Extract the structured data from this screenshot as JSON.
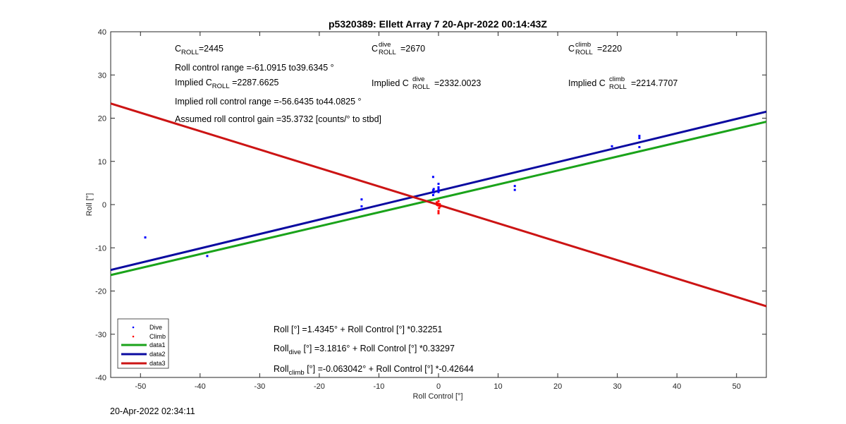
{
  "chart_data": {
    "type": "scatter",
    "title": "p5320389: Ellett Array 7 20-Apr-2022 00:14:43Z",
    "xlabel": "Roll Control [°]",
    "ylabel": "Roll [°]",
    "xlim": [
      -55,
      55
    ],
    "ylim": [
      -40,
      40
    ],
    "xticks": [
      -50,
      -40,
      -30,
      -20,
      -10,
      0,
      10,
      20,
      30,
      40,
      50
    ],
    "yticks": [
      -40,
      -30,
      -20,
      -10,
      0,
      10,
      20,
      30,
      40
    ],
    "xtick_labels": [
      "-50",
      "-40",
      "-30",
      "-20",
      "-10",
      "0",
      "10",
      "20",
      "30",
      "40",
      "50"
    ],
    "ytick_labels": [
      "-40",
      "-30",
      "-20",
      "-10",
      "0",
      "10",
      "20",
      "30",
      "40"
    ],
    "grid": false,
    "legend_position": "bottom-left",
    "series": [
      {
        "name": "Dive",
        "kind": "points",
        "color": "#0000ff",
        "points": [
          [
            -49.2,
            -7.6
          ],
          [
            -38.8,
            -11.9
          ],
          [
            -12.9,
            1.2
          ],
          [
            -12.9,
            -0.4
          ],
          [
            -12.9,
            -1.1
          ],
          [
            -0.9,
            6.4
          ],
          [
            -0.9,
            2.2
          ],
          [
            -0.9,
            3.3
          ],
          [
            -0.8,
            3.6
          ],
          [
            -0.8,
            2.8
          ],
          [
            0.0,
            4.8
          ],
          [
            0.0,
            3.7
          ],
          [
            0.0,
            2.9
          ],
          [
            0.0,
            3.4
          ],
          [
            0.0,
            4.0
          ],
          [
            12.8,
            4.3
          ],
          [
            12.8,
            3.4
          ],
          [
            29.1,
            13.5
          ],
          [
            33.7,
            15.4
          ],
          [
            33.7,
            15.9
          ],
          [
            33.7,
            13.3
          ]
        ]
      },
      {
        "name": "Climb",
        "kind": "points",
        "color": "#ff0000",
        "points": [
          [
            -0.3,
            0.5
          ],
          [
            -0.1,
            0.2
          ],
          [
            0.0,
            -0.2
          ],
          [
            0.1,
            -0.8
          ],
          [
            0.0,
            -1.5
          ],
          [
            -0.2,
            -0.1
          ],
          [
            0.2,
            0.1
          ],
          [
            0.0,
            0.8
          ],
          [
            0.0,
            -2.0
          ],
          [
            0.3,
            -0.4
          ]
        ]
      },
      {
        "name": "data1",
        "kind": "line",
        "color": "#1aa31a",
        "intercept": 1.4345,
        "slope": 0.32251
      },
      {
        "name": "data2",
        "kind": "line",
        "color": "#0a0aa0",
        "intercept": 3.1816,
        "slope": 0.33297
      },
      {
        "name": "data3",
        "kind": "line",
        "color": "#cc1414",
        "intercept": -0.063042,
        "slope": -0.42644
      }
    ]
  },
  "annotations": {
    "c_roll": {
      "base": "C",
      "sub": "ROLL",
      "value": "=2445"
    },
    "roll_range": "Roll control range =-61.0915 to39.6345 °",
    "implied_c_roll": {
      "prefix": "Implied C",
      "sub": "ROLL",
      "value": " =2287.6625"
    },
    "implied_range": "Implied roll control range =-56.6435 to44.0825 °",
    "gain": "Assumed roll control gain =35.3732 [counts/° to stbd]",
    "c_roll_dive": {
      "base": "C",
      "sup": "dive",
      "sub": "ROLL",
      "value": " =2670"
    },
    "implied_dive": {
      "prefix": "Implied C",
      "sup": "dive",
      "sub": "ROLL",
      "value": " =2332.0023"
    },
    "c_roll_climb": {
      "base": "C",
      "sup": "climb",
      "sub": "ROLL",
      "value": " =2220"
    },
    "implied_climb": {
      "prefix": "Implied C",
      "sup": "climb",
      "sub": "ROLL",
      "value": " =2214.7707"
    },
    "eq_all": "Roll [°] =1.4345° + Roll Control [°] *0.32251",
    "eq_dive": {
      "base": "Roll",
      "sub": "dive",
      "rest": " [°] =3.1816° + Roll Control [°] *0.33297"
    },
    "eq_climb": {
      "base": "Roll",
      "sub": "climb",
      "rest": " [°] =-0.063042° + Roll Control [°] *-0.42644"
    }
  },
  "timestamp": "20-Apr-2022 02:34:11"
}
